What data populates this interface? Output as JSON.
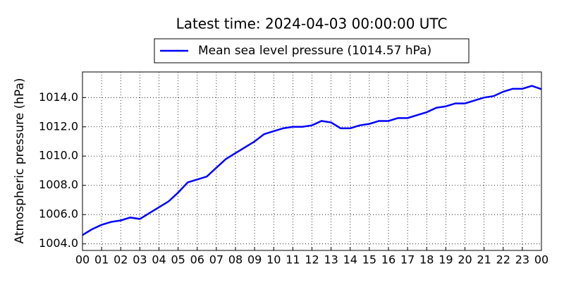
{
  "chart_data": {
    "type": "line",
    "title": "Latest time: 2024-04-03 00:00:00 UTC",
    "y_label": "Atmospheric pressure (hPa)",
    "x": [
      0,
      0.5,
      1,
      1.5,
      2,
      2.5,
      3,
      3.5,
      4,
      4.5,
      5,
      5.5,
      6,
      6.5,
      7,
      7.5,
      8,
      8.5,
      9,
      9.5,
      10,
      10.5,
      11,
      11.5,
      12,
      12.5,
      13,
      13.5,
      14,
      14.5,
      15,
      15.5,
      16,
      16.5,
      17,
      17.5,
      18,
      18.5,
      19,
      19.5,
      20,
      20.5,
      21,
      21.5,
      22,
      22.5,
      23,
      23.5,
      24
    ],
    "series": [
      {
        "name": "Mean sea level pressure (1014.57 hPa)",
        "color": "#0000ff",
        "values": [
          1004.6,
          1005.0,
          1005.3,
          1005.5,
          1005.6,
          1005.8,
          1005.7,
          1006.1,
          1006.5,
          1006.9,
          1007.5,
          1008.2,
          1008.4,
          1008.6,
          1009.2,
          1009.8,
          1010.2,
          1010.6,
          1011.0,
          1011.5,
          1011.7,
          1011.9,
          1012.0,
          1012.0,
          1012.1,
          1012.4,
          1012.3,
          1011.9,
          1011.9,
          1012.1,
          1012.2,
          1012.4,
          1012.4,
          1012.6,
          1012.6,
          1012.8,
          1013.0,
          1013.3,
          1013.4,
          1013.6,
          1013.6,
          1013.8,
          1014.0,
          1014.1,
          1014.4,
          1014.6,
          1014.6,
          1014.8,
          1014.57
        ]
      }
    ],
    "xlim": [
      0,
      24
    ],
    "xticks": [
      {
        "value": 0,
        "label": "00"
      },
      {
        "value": 1,
        "label": "01"
      },
      {
        "value": 2,
        "label": "02"
      },
      {
        "value": 3,
        "label": "03"
      },
      {
        "value": 4,
        "label": "04"
      },
      {
        "value": 5,
        "label": "05"
      },
      {
        "value": 6,
        "label": "06"
      },
      {
        "value": 7,
        "label": "07"
      },
      {
        "value": 8,
        "label": "08"
      },
      {
        "value": 9,
        "label": "09"
      },
      {
        "value": 10,
        "label": "10"
      },
      {
        "value": 11,
        "label": "11"
      },
      {
        "value": 12,
        "label": "12"
      },
      {
        "value": 13,
        "label": "13"
      },
      {
        "value": 14,
        "label": "14"
      },
      {
        "value": 15,
        "label": "15"
      },
      {
        "value": 16,
        "label": "16"
      },
      {
        "value": 17,
        "label": "17"
      },
      {
        "value": 18,
        "label": "18"
      },
      {
        "value": 19,
        "label": "19"
      },
      {
        "value": 20,
        "label": "20"
      },
      {
        "value": 21,
        "label": "21"
      },
      {
        "value": 22,
        "label": "22"
      },
      {
        "value": 23,
        "label": "23"
      },
      {
        "value": 24,
        "label": "00"
      }
    ],
    "ylim": [
      1003.55,
      1015.75
    ],
    "yticks": [
      {
        "value": 1004,
        "label": "1004.0"
      },
      {
        "value": 1006,
        "label": "1006.0"
      },
      {
        "value": 1008,
        "label": "1008.0"
      },
      {
        "value": 1010,
        "label": "1010.0"
      },
      {
        "value": 1012,
        "label": "1012.0"
      },
      {
        "value": 1014,
        "label": "1014.0"
      }
    ],
    "grid": true,
    "legend": "top"
  }
}
